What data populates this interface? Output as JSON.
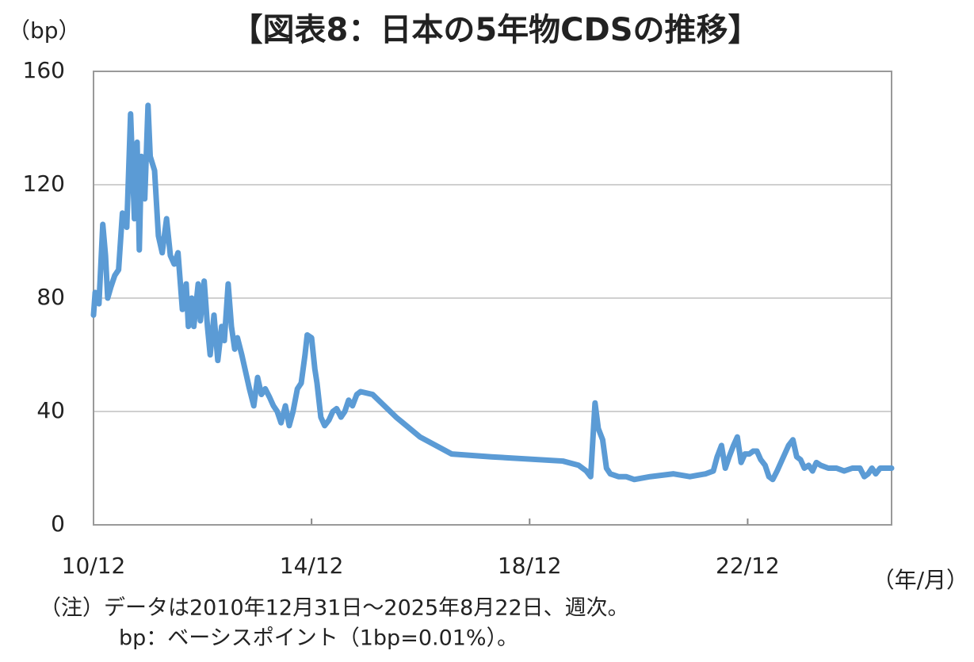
{
  "chart_data": {
    "type": "line",
    "title": "【図表8：日本の5年物CDSの推移】",
    "y_label": "（bp）",
    "x_label": "（年/月）",
    "notes": [
      "（注）データは2010年12月31日～2025年8月22日、週次。",
      "bp：ベーシスポイント（1bp=0.01%）。"
    ],
    "xlim": [
      2010.92,
      2025.56
    ],
    "xticks": [
      {
        "value": 2010.92,
        "label": "10/12"
      },
      {
        "value": 2014.92,
        "label": "14/12"
      },
      {
        "value": 2018.92,
        "label": "18/12"
      },
      {
        "value": 2022.92,
        "label": "22/12"
      }
    ],
    "ylim": [
      0,
      160
    ],
    "yticks": [
      0,
      40,
      80,
      120,
      160
    ],
    "grid": true,
    "x": [
      2010.92,
      2010.95,
      2011.02,
      2011.09,
      2011.14,
      2011.18,
      2011.24,
      2011.31,
      2011.38,
      2011.45,
      2011.53,
      2011.6,
      2011.67,
      2011.72,
      2011.76,
      2011.8,
      2011.86,
      2011.92,
      2011.96,
      2012.04,
      2012.11,
      2012.18,
      2012.26,
      2012.33,
      2012.4,
      2012.47,
      2012.55,
      2012.62,
      2012.66,
      2012.72,
      2012.76,
      2012.84,
      2012.88,
      2012.95,
      2013.01,
      2013.06,
      2013.13,
      2013.2,
      2013.27,
      2013.32,
      2013.39,
      2013.45,
      2013.51,
      2013.56,
      2013.64,
      2013.71,
      2013.78,
      2013.86,
      2013.93,
      2014.0,
      2014.07,
      2014.15,
      2014.22,
      2014.29,
      2014.36,
      2014.44,
      2014.51,
      2014.58,
      2014.66,
      2014.73,
      2014.8,
      2014.84,
      2014.92,
      2014.98,
      2015.02,
      2015.09,
      2015.16,
      2015.24,
      2015.31,
      2015.38,
      2015.46,
      2015.53,
      2015.6,
      2015.67,
      2015.75,
      2015.82,
      2016.04,
      2016.47,
      2016.91,
      2017.49,
      2018.22,
      2019.53,
      2019.82,
      2019.96,
      2020.04,
      2020.08,
      2020.12,
      2020.18,
      2020.26,
      2020.33,
      2020.4,
      2020.55,
      2020.69,
      2020.84,
      2021.13,
      2021.56,
      2021.86,
      2022.0,
      2022.15,
      2022.29,
      2022.36,
      2022.44,
      2022.51,
      2022.58,
      2022.66,
      2022.73,
      2022.8,
      2022.87,
      2022.95,
      2023.02,
      2023.09,
      2023.16,
      2023.24,
      2023.31,
      2023.38,
      2023.46,
      2023.53,
      2023.6,
      2023.67,
      2023.75,
      2023.82,
      2023.89,
      2023.96,
      2024.04,
      2024.11,
      2024.18,
      2024.26,
      2024.4,
      2024.55,
      2024.69,
      2024.84,
      2024.98,
      2025.06,
      2025.13,
      2025.2,
      2025.27,
      2025.35,
      2025.42,
      2025.56
    ],
    "series": [
      {
        "name": "CDS",
        "color": "#5b9bd5",
        "values": [
          74,
          82,
          78,
          106,
          95,
          80,
          84,
          88,
          90,
          110,
          105,
          145,
          108,
          135,
          97,
          130,
          115,
          148,
          130,
          125,
          102,
          96,
          108,
          95,
          92,
          96,
          76,
          85,
          70,
          80,
          70,
          85,
          72,
          86,
          70,
          60,
          74,
          58,
          70,
          65,
          85,
          70,
          62,
          66,
          60,
          54,
          48,
          42,
          52,
          46,
          48,
          45,
          42,
          40,
          36,
          42,
          35,
          40,
          48,
          50,
          60,
          67,
          66,
          55,
          50,
          38,
          35,
          37,
          40,
          41,
          38,
          40,
          44,
          42,
          46,
          47,
          46,
          38,
          31,
          25,
          24,
          22.5,
          21,
          19,
          17,
          30,
          43,
          34,
          30,
          20,
          18,
          17,
          17,
          16,
          17,
          18,
          17,
          17.5,
          18,
          19,
          24,
          28,
          20,
          24,
          28,
          31,
          22,
          25,
          25,
          26,
          26,
          23,
          21,
          17,
          16,
          19,
          22,
          25,
          28,
          30,
          24,
          23,
          20,
          21,
          19,
          22,
          21,
          20,
          20,
          19,
          20,
          20,
          17,
          18,
          20,
          18,
          20,
          20,
          20
        ]
      }
    ]
  }
}
